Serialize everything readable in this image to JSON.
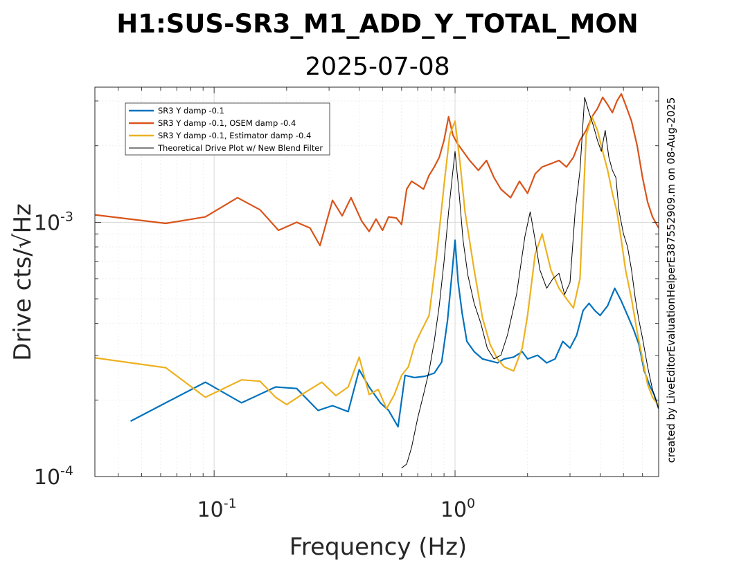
{
  "chart_data": {
    "type": "line",
    "title": "H1:SUS-SR3_M1_ADD_Y_TOTAL_MON",
    "subtitle": "2025-07-08",
    "xlabel": "Frequency (Hz)",
    "ylabel": "Drive cts/√Hz",
    "xscale": "log",
    "yscale": "log",
    "xlim": [
      0.032,
      7.0
    ],
    "ylim": [
      0.0001,
      0.0034
    ],
    "x_tick_labels": [
      {
        "value": 0.1,
        "base": "10",
        "exp": "-1"
      },
      {
        "value": 1.0,
        "base": "10",
        "exp": "0"
      }
    ],
    "y_tick_labels": [
      {
        "value": 0.0001,
        "base": "10",
        "exp": "-4"
      },
      {
        "value": 0.001,
        "base": "10",
        "exp": "-3"
      }
    ],
    "grid": "on (major and minor)",
    "legend_position": "top-left",
    "annotation": "created by LiveEditorEvaluationHelperE387552909.m on 08-Aug-2025",
    "series": [
      {
        "name": "SR3 Y damp -0.1",
        "color": "#0072BD",
        "x": [
          0.045,
          0.063,
          0.092,
          0.13,
          0.18,
          0.22,
          0.27,
          0.31,
          0.36,
          0.4,
          0.44,
          0.49,
          0.53,
          0.58,
          0.62,
          0.68,
          0.75,
          0.82,
          0.88,
          0.93,
          0.97,
          1.0,
          1.03,
          1.07,
          1.12,
          1.2,
          1.3,
          1.4,
          1.5,
          1.6,
          1.75,
          1.9,
          2.0,
          2.2,
          2.4,
          2.6,
          2.8,
          3.0,
          3.2,
          3.4,
          3.6,
          3.8,
          4.0,
          4.3,
          4.6,
          4.9,
          5.2,
          5.5,
          5.8,
          6.1,
          6.4,
          6.7,
          7.0
        ],
        "y": [
          0.000165,
          0.000195,
          0.000235,
          0.000195,
          0.000225,
          0.000222,
          0.000182,
          0.00019,
          0.00018,
          0.000263,
          0.000225,
          0.000195,
          0.000182,
          0.000157,
          0.00025,
          0.000245,
          0.000248,
          0.000255,
          0.000282,
          0.00041,
          0.00062,
          0.00085,
          0.00058,
          0.00044,
          0.00034,
          0.00031,
          0.00029,
          0.000285,
          0.00028,
          0.00029,
          0.000295,
          0.00031,
          0.00029,
          0.0003,
          0.00028,
          0.00029,
          0.00034,
          0.00032,
          0.00036,
          0.00045,
          0.00048,
          0.00045,
          0.00043,
          0.00047,
          0.00055,
          0.00049,
          0.00043,
          0.00038,
          0.00033,
          0.00026,
          0.00023,
          0.00021,
          0.000185
        ]
      },
      {
        "name": "SR3 Y damp -0.1, OSEM damp -0.4",
        "color": "#D95319",
        "x": [
          0.032,
          0.063,
          0.092,
          0.125,
          0.155,
          0.185,
          0.22,
          0.25,
          0.275,
          0.31,
          0.34,
          0.37,
          0.41,
          0.44,
          0.47,
          0.5,
          0.53,
          0.57,
          0.6,
          0.63,
          0.66,
          0.7,
          0.74,
          0.78,
          0.82,
          0.86,
          0.9,
          0.94,
          0.98,
          1.02,
          1.08,
          1.15,
          1.25,
          1.35,
          1.45,
          1.55,
          1.7,
          1.85,
          2.0,
          2.15,
          2.3,
          2.5,
          2.7,
          2.9,
          3.1,
          3.3,
          3.5,
          3.7,
          3.9,
          4.1,
          4.3,
          4.5,
          4.7,
          4.9,
          5.1,
          5.4,
          5.7,
          6.0,
          6.3,
          6.6,
          7.0
        ],
        "y": [
          0.00107,
          0.00099,
          0.00105,
          0.00125,
          0.00112,
          0.00093,
          0.001,
          0.00095,
          0.00081,
          0.00122,
          0.00106,
          0.00125,
          0.00101,
          0.00092,
          0.00103,
          0.00093,
          0.00105,
          0.00104,
          0.00098,
          0.00135,
          0.00145,
          0.0014,
          0.00135,
          0.00153,
          0.00165,
          0.0018,
          0.0021,
          0.0026,
          0.0022,
          0.00205,
          0.0019,
          0.00175,
          0.0016,
          0.00175,
          0.0015,
          0.00135,
          0.00125,
          0.00145,
          0.0013,
          0.00155,
          0.00165,
          0.0017,
          0.00175,
          0.00165,
          0.0018,
          0.0021,
          0.0023,
          0.0026,
          0.0028,
          0.0031,
          0.0029,
          0.0027,
          0.003,
          0.0032,
          0.0029,
          0.0025,
          0.002,
          0.0015,
          0.0012,
          0.00105,
          0.00095
        ]
      },
      {
        "name": "SR3 Y damp -0.1, Estimator damp -0.4",
        "color": "#EDB120",
        "x": [
          0.032,
          0.063,
          0.092,
          0.13,
          0.155,
          0.18,
          0.2,
          0.24,
          0.28,
          0.32,
          0.36,
          0.4,
          0.44,
          0.48,
          0.52,
          0.56,
          0.6,
          0.64,
          0.68,
          0.72,
          0.78,
          0.84,
          0.9,
          0.95,
          1.0,
          1.05,
          1.1,
          1.2,
          1.3,
          1.4,
          1.5,
          1.6,
          1.75,
          1.9,
          2.0,
          2.15,
          2.3,
          2.5,
          2.7,
          2.9,
          3.1,
          3.3,
          3.5,
          3.7,
          3.9,
          4.1,
          4.3,
          4.5,
          4.7,
          4.9,
          5.1,
          5.4,
          5.7,
          6.0,
          6.3,
          6.6,
          7.0
        ],
        "y": [
          0.000293,
          0.000268,
          0.000205,
          0.00024,
          0.000237,
          0.000205,
          0.000192,
          0.000215,
          0.000235,
          0.000208,
          0.000225,
          0.000295,
          0.00021,
          0.00022,
          0.000185,
          0.00021,
          0.00025,
          0.00027,
          0.00033,
          0.00037,
          0.00043,
          0.00075,
          0.0014,
          0.0022,
          0.0025,
          0.0017,
          0.0011,
          0.00065,
          0.00042,
          0.00033,
          0.00029,
          0.00027,
          0.00026,
          0.00032,
          0.00043,
          0.00075,
          0.0009,
          0.00065,
          0.00055,
          0.0005,
          0.00046,
          0.0006,
          0.0022,
          0.0026,
          0.0023,
          0.0019,
          0.0016,
          0.0013,
          0.0011,
          0.00085,
          0.00065,
          0.0005,
          0.00037,
          0.00029,
          0.00023,
          0.000205,
          0.00019
        ]
      },
      {
        "name": "Theoretical Drive Plot w/ New Blend Filter",
        "color": "#000000",
        "x": [
          0.6,
          0.63,
          0.66,
          0.7,
          0.74,
          0.78,
          0.82,
          0.86,
          0.9,
          0.94,
          0.98,
          1.0,
          1.04,
          1.08,
          1.13,
          1.2,
          1.28,
          1.36,
          1.45,
          1.55,
          1.65,
          1.8,
          1.95,
          2.05,
          2.15,
          2.25,
          2.4,
          2.55,
          2.7,
          2.85,
          3.0,
          3.15,
          3.3,
          3.45,
          3.6,
          3.75,
          3.9,
          4.05,
          4.2,
          4.35,
          4.5,
          4.65,
          4.8,
          5.0,
          5.2,
          5.4,
          5.6,
          5.8,
          6.0,
          6.3,
          6.6,
          7.0
        ],
        "y": [
          0.000108,
          0.000112,
          0.00013,
          0.00017,
          0.00021,
          0.00026,
          0.00034,
          0.00047,
          0.0007,
          0.0011,
          0.0016,
          0.0019,
          0.0013,
          0.00085,
          0.00062,
          0.00048,
          0.0004,
          0.00032,
          0.00029,
          0.0003,
          0.00036,
          0.00052,
          0.00088,
          0.0011,
          0.00085,
          0.00065,
          0.00055,
          0.0006,
          0.00063,
          0.00052,
          0.00058,
          0.0011,
          0.0016,
          0.0031,
          0.0027,
          0.0024,
          0.0021,
          0.0019,
          0.0023,
          0.0018,
          0.0016,
          0.0015,
          0.0011,
          0.0009,
          0.0008,
          0.00065,
          0.0005,
          0.00041,
          0.00035,
          0.00027,
          0.00022,
          0.000185
        ]
      }
    ]
  }
}
